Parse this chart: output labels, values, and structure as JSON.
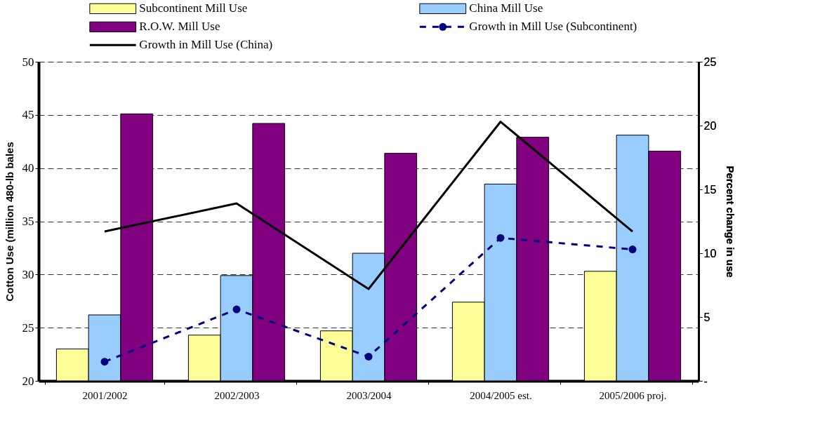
{
  "chart_data": {
    "type": "bar",
    "categories": [
      "2001/2002",
      "2002/2003",
      "2003/2004",
      "2004/2005 est.",
      "2005/2006 proj."
    ],
    "ylabel": "Cotton Use (million 480-lb bales",
    "y2label": "Percent change in use",
    "series": [
      {
        "name": "Subcontinent Mill Use",
        "color": "#ffff99",
        "values": [
          23.0,
          24.3,
          24.7,
          27.4,
          30.3
        ]
      },
      {
        "name": "China Mill Use",
        "color": "#99ccff",
        "values": [
          26.2,
          29.9,
          32.0,
          38.5,
          43.1
        ]
      },
      {
        "name": "R.O.W. Mill Use",
        "color": "#800080",
        "values": [
          45.1,
          44.2,
          41.4,
          42.9,
          41.6
        ]
      },
      {
        "name": "Growth in Mill Use (Subcontinent)",
        "type": "line",
        "axis": "y2",
        "color": "#000080",
        "marker": "circle",
        "line_style": "dashed",
        "values": [
          1.5,
          5.6,
          1.9,
          11.2,
          10.3
        ]
      },
      {
        "name": "Growth in Mill Use (China)",
        "type": "line",
        "axis": "y2",
        "color": "#000000",
        "marker": "none",
        "line_style": "solid",
        "values": [
          11.7,
          13.9,
          7.2,
          20.3,
          11.7
        ]
      }
    ],
    "ylim": [
      20,
      50
    ],
    "yticks": [
      20,
      25,
      30,
      35,
      40,
      45,
      50
    ],
    "y2lim": [
      0,
      25
    ],
    "y2ticks": [
      {
        "value": 0,
        "label": "-"
      },
      5,
      10,
      15,
      20,
      25
    ],
    "grid": "y",
    "legend": "top"
  }
}
